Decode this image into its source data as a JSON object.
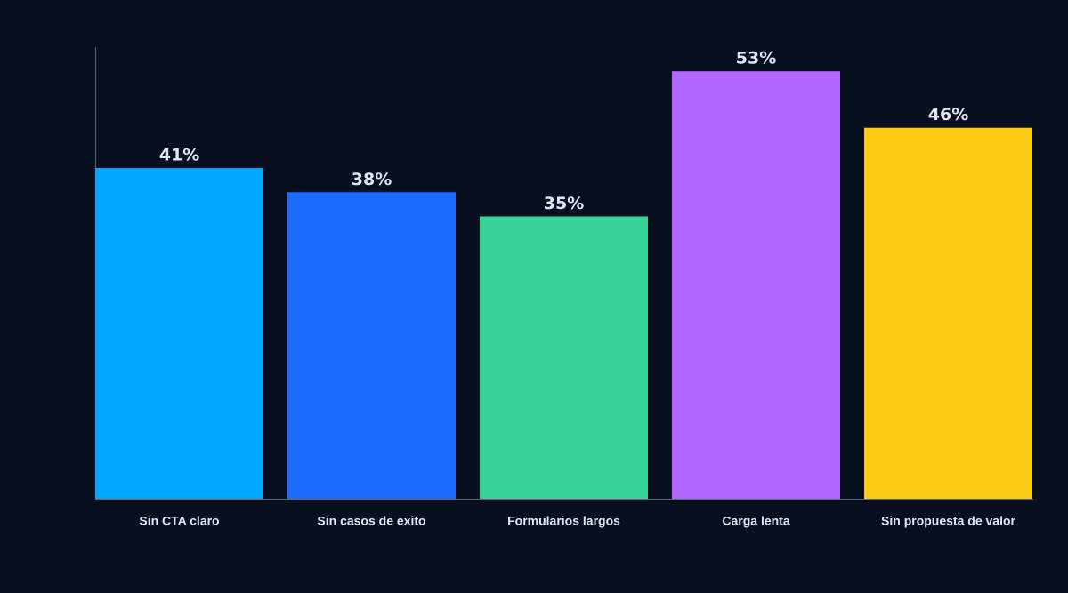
{
  "chart_data": {
    "type": "bar",
    "categories": [
      "Sin CTA claro",
      "Sin casos de exito",
      "Formularios largos",
      "Carga lenta",
      "Sin propuesta de valor"
    ],
    "values": [
      41,
      38,
      35,
      53,
      46
    ],
    "value_labels": [
      "41%",
      "38%",
      "35%",
      "53%",
      "46%"
    ],
    "colors": [
      "#00a8ff",
      "#1a6cff",
      "#36d399",
      "#b366ff",
      "#facc15"
    ],
    "ylim": [
      0,
      56
    ]
  }
}
